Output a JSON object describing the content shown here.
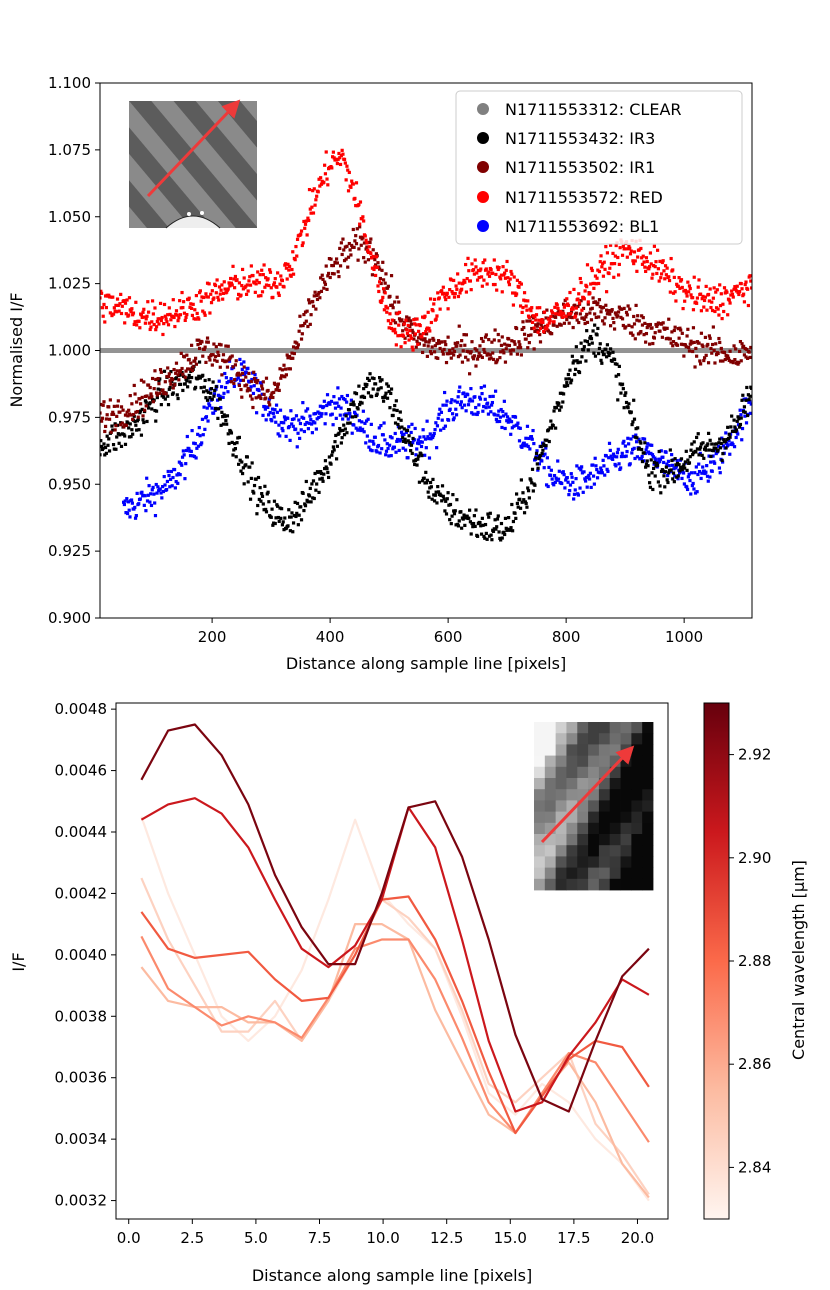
{
  "colors": {
    "clear": "#808080",
    "ir3": "#000000",
    "ir1": "#800000",
    "red": "#ff0000",
    "bl1": "#0000ff",
    "inset_arrow": "#ee3a3a"
  },
  "chart_data": [
    {
      "type": "scatter",
      "xlabel": "Distance along sample line [pixels]",
      "ylabel": "Normalised I/F",
      "xlim": [
        10,
        1115
      ],
      "ylim": [
        0.9,
        1.1
      ],
      "xticks": [
        200,
        400,
        600,
        800,
        1000
      ],
      "yticks": [
        0.9,
        0.925,
        0.95,
        0.975,
        1.0,
        1.025,
        1.05,
        1.075,
        1.1
      ],
      "xtick_labels": [
        "200",
        "400",
        "600",
        "800",
        "1000"
      ],
      "ytick_labels": [
        "0.900",
        "0.925",
        "0.950",
        "0.975",
        "1.000",
        "1.025",
        "1.050",
        "1.075",
        "1.100"
      ],
      "legend_position": "top-right",
      "inset": "image-with-arrow",
      "series": [
        {
          "name": "N1711553312: CLEAR",
          "color_key": "clear",
          "x": [
            10,
            1115
          ],
          "y": [
            1.0,
            1.0
          ]
        },
        {
          "name": "N1711553432: IR3",
          "color_key": "ir3",
          "x": [
            10,
            60,
            120,
            170,
            200,
            240,
            280,
            320,
            350,
            400,
            440,
            470,
            500,
            540,
            580,
            620,
            660,
            700,
            740,
            780,
            810,
            850,
            880,
            910,
            940,
            980,
            1020,
            1060,
            1090,
            1115
          ],
          "y": [
            0.965,
            0.97,
            0.985,
            0.99,
            0.985,
            0.965,
            0.945,
            0.936,
            0.94,
            0.96,
            0.98,
            0.987,
            0.983,
            0.962,
            0.945,
            0.938,
            0.934,
            0.933,
            0.95,
            0.975,
            0.995,
            1.005,
            0.995,
            0.975,
            0.955,
            0.955,
            0.962,
            0.965,
            0.972,
            0.985
          ]
        },
        {
          "name": "N1711553502: IR1",
          "color_key": "ir1",
          "x": [
            10,
            50,
            100,
            140,
            180,
            200,
            230,
            260,
            300,
            340,
            380,
            420,
            450,
            480,
            510,
            550,
            600,
            650,
            700,
            750,
            800,
            850,
            900,
            950,
            1000,
            1050,
            1090,
            1115
          ],
          "y": [
            0.975,
            0.978,
            0.985,
            0.993,
            1.0,
            1.0,
            0.995,
            0.988,
            0.982,
            1.0,
            1.022,
            1.035,
            1.04,
            1.035,
            1.015,
            1.003,
            1.0,
            1.0,
            1.002,
            1.008,
            1.013,
            1.015,
            1.012,
            1.008,
            1.003,
            1.0,
            0.998,
            1.0
          ]
        },
        {
          "name": "N1711553572: RED",
          "color_key": "red",
          "x": [
            10,
            40,
            80,
            120,
            160,
            200,
            240,
            280,
            310,
            340,
            370,
            400,
            420,
            440,
            470,
            500,
            530,
            560,
            590,
            630,
            670,
            700,
            730,
            760,
            800,
            840,
            870,
            900,
            930,
            960,
            1000,
            1040,
            1080,
            1115
          ],
          "y": [
            1.018,
            1.016,
            1.013,
            1.013,
            1.016,
            1.02,
            1.025,
            1.025,
            1.025,
            1.035,
            1.055,
            1.07,
            1.072,
            1.06,
            1.035,
            1.012,
            1.005,
            1.01,
            1.02,
            1.027,
            1.03,
            1.027,
            1.018,
            1.01,
            1.015,
            1.025,
            1.032,
            1.038,
            1.035,
            1.03,
            1.022,
            1.018,
            1.02,
            1.025
          ]
        },
        {
          "name": "N1711553692: BL1",
          "color_key": "bl1",
          "x": [
            50,
            90,
            130,
            170,
            200,
            230,
            260,
            290,
            330,
            370,
            400,
            430,
            460,
            490,
            530,
            570,
            600,
            630,
            660,
            700,
            740,
            780,
            820,
            860,
            900,
            940,
            980,
            1020,
            1060,
            1100,
            1115
          ],
          "y": [
            0.94,
            0.945,
            0.95,
            0.965,
            0.98,
            0.99,
            0.99,
            0.98,
            0.972,
            0.973,
            0.98,
            0.978,
            0.97,
            0.965,
            0.965,
            0.968,
            0.978,
            0.982,
            0.98,
            0.975,
            0.965,
            0.952,
            0.95,
            0.955,
            0.962,
            0.962,
            0.955,
            0.952,
            0.96,
            0.975,
            0.98
          ]
        }
      ]
    },
    {
      "type": "line",
      "xlabel": "Distance along sample line [pixels]",
      "ylabel": "I/F",
      "xlim": [
        -0.5,
        21.2
      ],
      "ylim": [
        0.00314,
        0.00482
      ],
      "xticks": [
        0.0,
        2.5,
        5.0,
        7.5,
        10.0,
        12.5,
        15.0,
        17.5,
        20.0
      ],
      "xtick_labels": [
        "0.0",
        "2.5",
        "5.0",
        "7.5",
        "10.0",
        "12.5",
        "15.0",
        "17.5",
        "20.0"
      ],
      "yticks": [
        0.0032,
        0.0034,
        0.0036,
        0.0038,
        0.004,
        0.0042,
        0.0044,
        0.0046,
        0.0048
      ],
      "ytick_labels": [
        "0.0032",
        "0.0034",
        "0.0036",
        "0.0038",
        "0.0040",
        "0.0042",
        "0.0044",
        "0.0046",
        "0.0048"
      ],
      "x": [
        0.5,
        1.55,
        2.6,
        3.65,
        4.7,
        5.75,
        6.8,
        7.85,
        8.9,
        9.95,
        11.0,
        12.05,
        13.1,
        14.15,
        15.2,
        16.25,
        17.3,
        18.35,
        19.4,
        20.45
      ],
      "colorbar": {
        "label": "Central wavelength [μm]",
        "range": [
          2.83,
          2.93
        ],
        "ticks": [
          2.84,
          2.86,
          2.88,
          2.9,
          2.92
        ],
        "tick_labels": [
          "2.84",
          "2.86",
          "2.88",
          "2.90",
          "2.92"
        ]
      },
      "inset": "image-with-arrow",
      "series": [
        {
          "name": "2.835 μm",
          "wavelength": 2.835,
          "values": [
            0.00445,
            0.0042,
            0.004,
            0.0038,
            0.00372,
            0.0038,
            0.00395,
            0.00418,
            0.00444,
            0.0042,
            0.0041,
            0.00402,
            0.0038,
            0.00355,
            0.00348,
            0.00358,
            0.00352,
            0.0034,
            0.00332,
            0.0032
          ]
        },
        {
          "name": "2.845 μm",
          "wavelength": 2.845,
          "values": [
            0.00425,
            0.00405,
            0.0039,
            0.00375,
            0.00375,
            0.00385,
            0.00372,
            0.00385,
            0.004,
            0.00418,
            0.00412,
            0.00402,
            0.00382,
            0.00358,
            0.00352,
            0.0036,
            0.00368,
            0.00345,
            0.00335,
            0.00322
          ]
        },
        {
          "name": "2.855 μm",
          "wavelength": 2.855,
          "values": [
            0.00396,
            0.00385,
            0.00383,
            0.00383,
            0.00378,
            0.00378,
            0.00372,
            0.00385,
            0.0041,
            0.0041,
            0.00405,
            0.00382,
            0.00365,
            0.00348,
            0.00342,
            0.00355,
            0.00365,
            0.00352,
            0.00332,
            0.00321
          ]
        },
        {
          "name": "2.87 μm",
          "wavelength": 2.87,
          "values": [
            0.00406,
            0.00389,
            0.00383,
            0.00377,
            0.0038,
            0.00378,
            0.00373,
            0.00386,
            0.00402,
            0.00405,
            0.00405,
            0.00392,
            0.00373,
            0.00352,
            0.00342,
            0.00355,
            0.00368,
            0.00365,
            0.00352,
            0.00339
          ]
        },
        {
          "name": "2.885 μm",
          "wavelength": 2.885,
          "values": [
            0.00414,
            0.00402,
            0.00399,
            0.004,
            0.00401,
            0.00392,
            0.00385,
            0.00386,
            0.004,
            0.00418,
            0.00419,
            0.00405,
            0.00385,
            0.00362,
            0.00342,
            0.00354,
            0.00366,
            0.00372,
            0.0037,
            0.00357
          ]
        },
        {
          "name": "2.905 μm",
          "wavelength": 2.905,
          "values": [
            0.00444,
            0.00449,
            0.00451,
            0.00446,
            0.00435,
            0.00418,
            0.00402,
            0.00396,
            0.00403,
            0.00418,
            0.00448,
            0.00435,
            0.00405,
            0.00372,
            0.00349,
            0.00352,
            0.00367,
            0.00378,
            0.00392,
            0.00387
          ]
        },
        {
          "name": "2.925 μm",
          "wavelength": 2.925,
          "values": [
            0.00457,
            0.00473,
            0.00475,
            0.00465,
            0.00449,
            0.00426,
            0.00409,
            0.00397,
            0.00397,
            0.0042,
            0.00448,
            0.0045,
            0.00432,
            0.00405,
            0.00374,
            0.00353,
            0.00349,
            0.00372,
            0.00393,
            0.00402
          ]
        }
      ]
    }
  ]
}
